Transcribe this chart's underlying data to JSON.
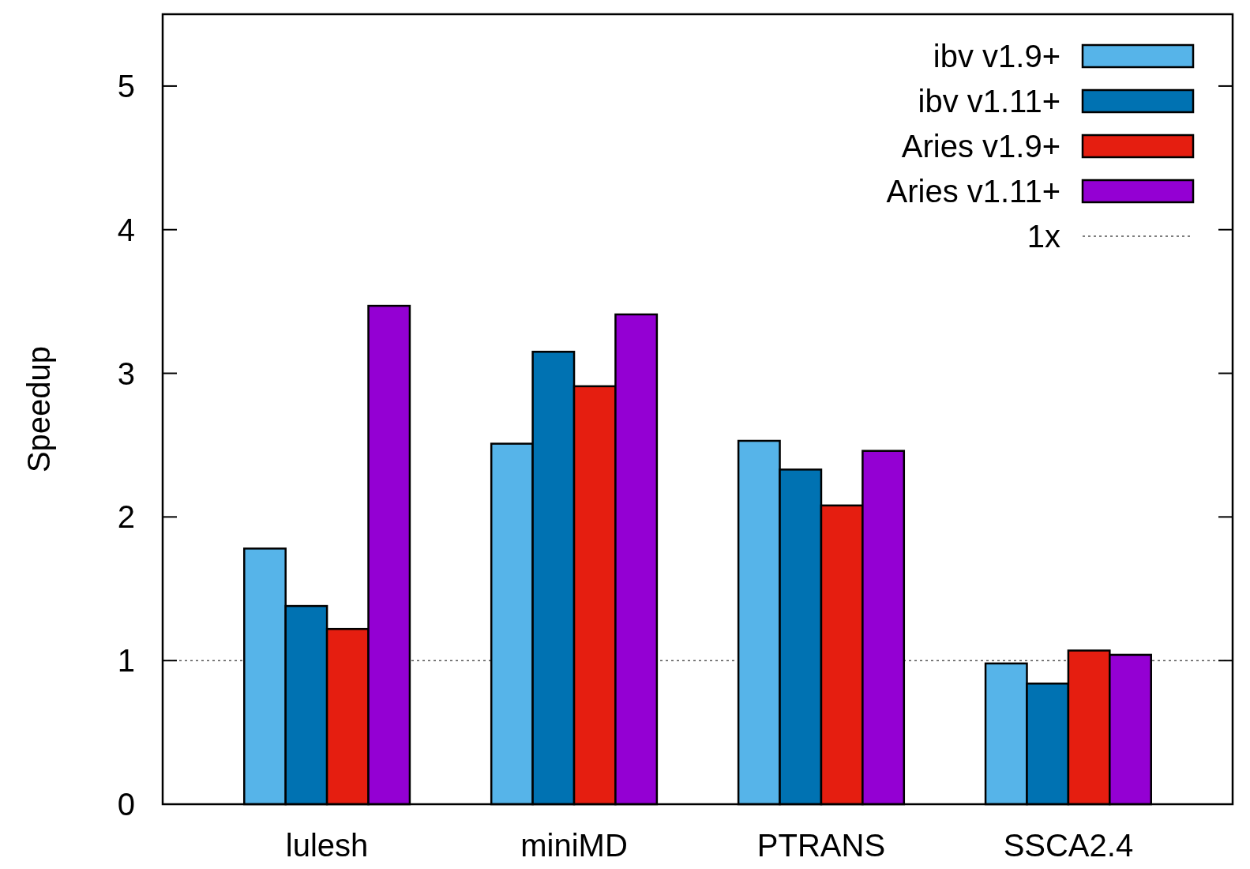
{
  "chart_data": {
    "type": "bar",
    "ylabel": "Speedup",
    "categories": [
      "lulesh",
      "miniMD",
      "PTRANS",
      "SSCA2.4"
    ],
    "series": [
      {
        "name": "ibv v1.9+",
        "color": "#56b4e9",
        "values": [
          1.78,
          2.51,
          2.53,
          0.98
        ]
      },
      {
        "name": "ibv v1.11+",
        "color": "#0072b2",
        "values": [
          1.38,
          3.15,
          2.33,
          0.84
        ]
      },
      {
        "name": "Aries v1.9+",
        "color": "#e51e10",
        "values": [
          1.22,
          2.91,
          2.08,
          1.07
        ]
      },
      {
        "name": "Aries v1.11+",
        "color": "#9400d3",
        "values": [
          3.47,
          3.41,
          2.46,
          1.04
        ]
      }
    ],
    "ylim": [
      0,
      5.5
    ],
    "yticks": [
      0,
      1,
      2,
      3,
      4,
      5
    ],
    "grid": false,
    "legend": "top right",
    "ref_lines": [
      {
        "axis": "y",
        "value": 1,
        "label": "1x",
        "color": "#000000",
        "line_style": "dotted"
      }
    ]
  }
}
